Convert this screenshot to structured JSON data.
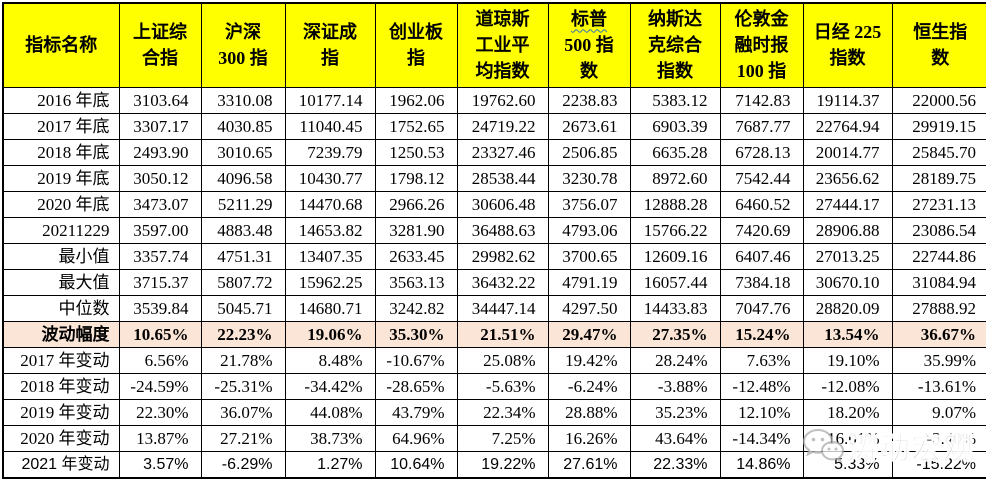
{
  "colors": {
    "header_bg": "#FFFF00",
    "highlight_bg": "#FBE5D6",
    "border": "#000000",
    "squiggle_underline": "#2E75B6",
    "watermark": "#b9b9b9"
  },
  "table": {
    "header": [
      {
        "label": "指标名称"
      },
      {
        "label": "上证综\n合指"
      },
      {
        "label": "沪深\n300 指"
      },
      {
        "label": "深证成\n指"
      },
      {
        "label": "创业板\n指"
      },
      {
        "label": "道琼斯\n工业平\n均指数"
      },
      {
        "label": "标普\n500 指\n数",
        "wavy_part": "标普"
      },
      {
        "label": "纳斯达\n克综合\n指数"
      },
      {
        "label": "伦敦金\n融时报\n100 指"
      },
      {
        "label": "日经 225\n指数"
      },
      {
        "label": "恒生指\n数"
      }
    ],
    "rows": [
      {
        "label": "2016 年底",
        "values": [
          "3103.64",
          "3310.08",
          "10177.14",
          "1962.06",
          "19762.60",
          "2238.83",
          "5383.12",
          "7142.83",
          "19114.37",
          "22000.56"
        ]
      },
      {
        "label": "2017 年底",
        "values": [
          "3307.17",
          "4030.85",
          "11040.45",
          "1752.65",
          "24719.22",
          "2673.61",
          "6903.39",
          "7687.77",
          "22764.94",
          "29919.15"
        ]
      },
      {
        "label": "2018 年底",
        "values": [
          "2493.90",
          "3010.65",
          "7239.79",
          "1250.53",
          "23327.46",
          "2506.85",
          "6635.28",
          "6728.13",
          "20014.77",
          "25845.70"
        ]
      },
      {
        "label": "2019 年底",
        "values": [
          "3050.12",
          "4096.58",
          "10430.77",
          "1798.12",
          "28538.44",
          "3230.78",
          "8972.60",
          "7542.44",
          "23656.62",
          "28189.75"
        ]
      },
      {
        "label": "2020 年底",
        "values": [
          "3473.07",
          "5211.29",
          "14470.68",
          "2966.26",
          "30606.48",
          "3756.07",
          "12888.28",
          "6460.52",
          "27444.17",
          "27231.13"
        ]
      },
      {
        "label": "20211229",
        "values": [
          "3597.00",
          "4883.48",
          "14653.82",
          "3281.90",
          "36488.63",
          "4793.06",
          "15766.22",
          "7420.69",
          "28906.88",
          "23086.54"
        ]
      },
      {
        "label": "最小值",
        "values": [
          "3357.74",
          "4751.31",
          "13407.35",
          "2633.45",
          "29982.62",
          "3700.65",
          "12609.16",
          "6407.46",
          "27013.25",
          "22744.86"
        ]
      },
      {
        "label": "最大值",
        "values": [
          "3715.37",
          "5807.72",
          "15962.25",
          "3563.13",
          "36432.22",
          "4791.19",
          "16057.44",
          "7384.18",
          "30670.10",
          "31084.94"
        ]
      },
      {
        "label": "中位数",
        "values": [
          "3539.84",
          "5045.71",
          "14680.71",
          "3242.82",
          "34447.14",
          "4297.50",
          "14433.83",
          "7047.76",
          "28820.09",
          "27888.92"
        ]
      },
      {
        "label": "波动幅度",
        "highlight": true,
        "values": [
          "10.65%",
          "22.23%",
          "19.06%",
          "35.30%",
          "21.51%",
          "29.47%",
          "27.35%",
          "15.24%",
          "13.54%",
          "36.67%"
        ]
      },
      {
        "label": "2017 年变动",
        "values": [
          "6.56%",
          "21.78%",
          "8.48%",
          "-10.67%",
          "25.08%",
          "19.42%",
          "28.24%",
          "7.63%",
          "19.10%",
          "35.99%"
        ]
      },
      {
        "label": "2018 年变动",
        "values": [
          "-24.59%",
          "-25.31%",
          "-34.42%",
          "-28.65%",
          "-5.63%",
          "-6.24%",
          "-3.88%",
          "-12.48%",
          "-12.08%",
          "-13.61%"
        ]
      },
      {
        "label": "2019 年变动",
        "values": [
          "22.30%",
          "36.07%",
          "44.08%",
          "43.79%",
          "22.34%",
          "28.88%",
          "35.23%",
          "12.10%",
          "18.20%",
          "9.07%"
        ]
      },
      {
        "label": "2020 年变动",
        "values": [
          "13.87%",
          "27.21%",
          "38.73%",
          "64.96%",
          "7.25%",
          "16.26%",
          "43.64%",
          "-14.34%",
          "16.01%",
          "-3.40%"
        ]
      },
      {
        "label": "2021 年变动",
        "alt_font": true,
        "values": [
          "3.57%",
          "-6.29%",
          "1.27%",
          "10.64%",
          "19.22%",
          "27.61%",
          "22.33%",
          "14.86%",
          "5.33%",
          "-15.22%"
        ]
      }
    ]
  },
  "watermark": {
    "text": "涛动宏观",
    "icon": "wechat-icon"
  }
}
